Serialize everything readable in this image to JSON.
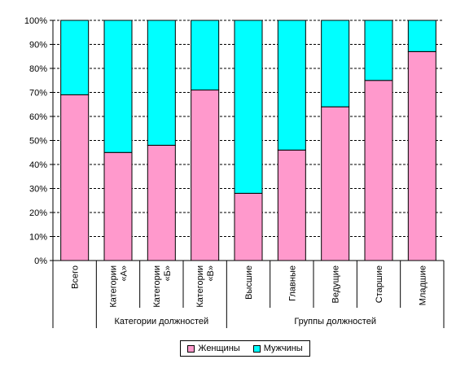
{
  "chart_data": {
    "type": "bar",
    "stacked": true,
    "normalized": true,
    "categories": [
      "Всего",
      "Категории «А»",
      "Категории «Б»",
      "Категории «В»",
      "Высшие",
      "Главные",
      "Ведущие",
      "Старшие",
      "Младшие"
    ],
    "category_lines": [
      [
        "Всего"
      ],
      [
        "Категории",
        "«А»"
      ],
      [
        "Категории",
        "«Б»"
      ],
      [
        "Категории",
        "«В»"
      ],
      [
        "Высшие"
      ],
      [
        "Главные"
      ],
      [
        "Ведущие"
      ],
      [
        "Старшие"
      ],
      [
        "Младшие"
      ]
    ],
    "groups": [
      {
        "label": "",
        "categories": [
          "Всего"
        ]
      },
      {
        "label": "Категории должностей",
        "categories": [
          "Категории «А»",
          "Категории «Б»",
          "Категории «В»"
        ]
      },
      {
        "label": "Группы должностей",
        "categories": [
          "Высшие",
          "Главные",
          "Ведущие",
          "Старшие",
          "Младшие"
        ]
      }
    ],
    "series": [
      {
        "name": "Женщины",
        "color": "#ff99cc",
        "values": [
          69,
          45,
          48,
          71,
          28,
          46,
          64,
          75,
          87
        ]
      },
      {
        "name": "Мужчины",
        "color": "#00ffff",
        "values": [
          31,
          55,
          52,
          29,
          72,
          54,
          36,
          25,
          13
        ]
      }
    ],
    "ylim": [
      0,
      100
    ],
    "yticks": [
      "0%",
      "10%",
      "20%",
      "30%",
      "40%",
      "50%",
      "60%",
      "70%",
      "80%",
      "90%",
      "100%"
    ],
    "grid": true,
    "legend_position": "bottom"
  }
}
